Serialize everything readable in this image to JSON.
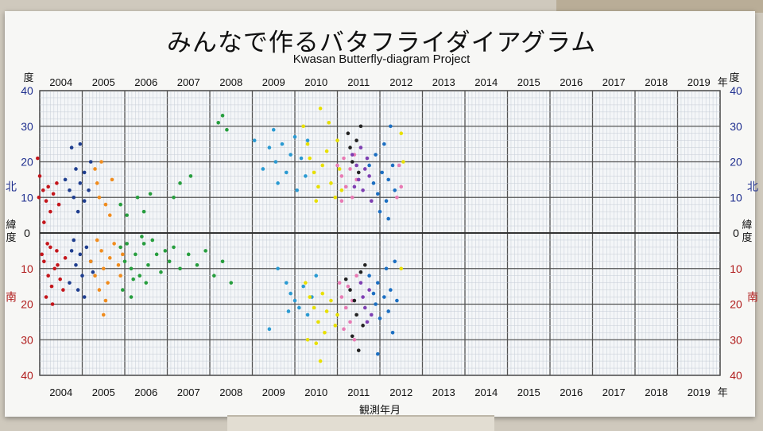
{
  "title": "みんなで作るバタフライダイアグラム",
  "subtitle": "Kwasan Butterfly-diagram Project",
  "chart_data": {
    "type": "scatter",
    "title": "みんなで作るバタフライダイアグラム",
    "subtitle": "Kwasan Butterfly-diagram Project",
    "xlabel": "観測年月",
    "ylabel_chars": [
      "緯",
      "度"
    ],
    "top_corner_label": "度",
    "year_suffix": "年",
    "north_label": "北",
    "south_label": "南",
    "xlim": [
      2004,
      2020
    ],
    "ylim": [
      -40,
      40
    ],
    "x_ticks": [
      "2004",
      "2005",
      "2006",
      "2007",
      "2008",
      "2009",
      "2010",
      "2011",
      "2012",
      "2013",
      "2014",
      "2015",
      "2016",
      "2017",
      "2018",
      "2019"
    ],
    "y_ticks": [
      {
        "v": 40,
        "t": "40",
        "c": "n"
      },
      {
        "v": 30,
        "t": "30",
        "c": "n"
      },
      {
        "v": 20,
        "t": "20",
        "c": "n"
      },
      {
        "v": 10,
        "t": "10",
        "c": "n"
      },
      {
        "v": 0,
        "t": "0",
        "c": "k"
      },
      {
        "v": -10,
        "t": "10",
        "c": "s"
      },
      {
        "v": -20,
        "t": "20",
        "c": "s"
      },
      {
        "v": -30,
        "t": "30",
        "c": "s"
      },
      {
        "v": -40,
        "t": "40",
        "c": "s"
      }
    ],
    "colors": {
      "north_label": "#1f2f8f",
      "south_label": "#b01c1c",
      "zero": "#333333"
    },
    "grid": true,
    "series": [
      {
        "color": "#c4161c",
        "points": [
          [
            2003.95,
            21
          ],
          [
            2004.0,
            16
          ],
          [
            2004.08,
            12
          ],
          [
            2004.15,
            9
          ],
          [
            2004.2,
            13
          ],
          [
            2004.25,
            6
          ],
          [
            2004.1,
            3
          ],
          [
            2004.32,
            11
          ],
          [
            2004.4,
            14
          ],
          [
            2004.45,
            8
          ],
          [
            2003.98,
            10
          ],
          [
            2004.18,
            -3
          ],
          [
            2004.1,
            -8
          ],
          [
            2004.2,
            -12
          ],
          [
            2004.28,
            -15
          ],
          [
            2004.05,
            -6
          ],
          [
            2004.35,
            -10
          ],
          [
            2004.4,
            -5
          ],
          [
            2004.48,
            -13
          ],
          [
            2004.15,
            -18
          ],
          [
            2004.3,
            -20
          ],
          [
            2004.42,
            -9
          ],
          [
            2004.55,
            -16
          ],
          [
            2004.6,
            -7
          ],
          [
            2004.25,
            -4
          ]
        ]
      },
      {
        "color": "#1f3e8f",
        "points": [
          [
            2004.75,
            24
          ],
          [
            2004.95,
            25
          ],
          [
            2004.6,
            15
          ],
          [
            2004.7,
            12
          ],
          [
            2004.8,
            10
          ],
          [
            2004.85,
            18
          ],
          [
            2004.95,
            14
          ],
          [
            2005.05,
            9
          ],
          [
            2005.15,
            12
          ],
          [
            2004.9,
            6
          ],
          [
            2005.05,
            17
          ],
          [
            2005.2,
            20
          ],
          [
            2004.75,
            -5
          ],
          [
            2004.85,
            -9
          ],
          [
            2004.95,
            -6
          ],
          [
            2005.0,
            -12
          ],
          [
            2005.1,
            -4
          ],
          [
            2005.2,
            -8
          ],
          [
            2004.7,
            -14
          ],
          [
            2004.9,
            -16
          ],
          [
            2004.8,
            -2
          ],
          [
            2005.05,
            -18
          ],
          [
            2005.25,
            -11
          ]
        ]
      },
      {
        "color": "#f08c1e",
        "points": [
          [
            2005.3,
            18
          ],
          [
            2005.45,
            20
          ],
          [
            2005.7,
            15
          ],
          [
            2005.4,
            10
          ],
          [
            2005.55,
            8
          ],
          [
            2005.65,
            5
          ],
          [
            2005.35,
            14
          ],
          [
            2005.2,
            -8
          ],
          [
            2005.3,
            -12
          ],
          [
            2005.45,
            -5
          ],
          [
            2005.5,
            -10
          ],
          [
            2005.6,
            -14
          ],
          [
            2005.65,
            -7
          ],
          [
            2005.75,
            -3
          ],
          [
            2005.85,
            -9
          ],
          [
            2005.9,
            -12
          ],
          [
            2005.55,
            -19
          ],
          [
            2005.5,
            -23
          ],
          [
            2005.4,
            -16
          ],
          [
            2005.95,
            -6
          ],
          [
            2005.35,
            -2
          ]
        ]
      },
      {
        "color": "#279e3e",
        "points": [
          [
            2005.9,
            8
          ],
          [
            2006.05,
            5
          ],
          [
            2006.3,
            10
          ],
          [
            2006.6,
            11
          ],
          [
            2006.45,
            6
          ],
          [
            2007.15,
            10
          ],
          [
            2007.3,
            14
          ],
          [
            2007.55,
            16
          ],
          [
            2008.2,
            31
          ],
          [
            2008.3,
            33
          ],
          [
            2008.4,
            29
          ],
          [
            2005.9,
            -4
          ],
          [
            2006.0,
            -8
          ],
          [
            2006.15,
            -10
          ],
          [
            2006.25,
            -6
          ],
          [
            2006.35,
            -12
          ],
          [
            2006.45,
            -3
          ],
          [
            2006.55,
            -9
          ],
          [
            2006.65,
            -2
          ],
          [
            2006.75,
            -6
          ],
          [
            2006.85,
            -11
          ],
          [
            2006.95,
            -5
          ],
          [
            2007.05,
            -8
          ],
          [
            2007.15,
            -4
          ],
          [
            2007.3,
            -10
          ],
          [
            2007.5,
            -6
          ],
          [
            2007.7,
            -9
          ],
          [
            2007.9,
            -5
          ],
          [
            2008.1,
            -12
          ],
          [
            2008.3,
            -8
          ],
          [
            2008.5,
            -14
          ],
          [
            2005.95,
            -16
          ],
          [
            2006.15,
            -18
          ],
          [
            2006.2,
            -13
          ],
          [
            2006.5,
            -14
          ],
          [
            2006.05,
            -3
          ],
          [
            2006.4,
            -1
          ]
        ]
      },
      {
        "color": "#2a9ad2",
        "points": [
          [
            2009.05,
            26
          ],
          [
            2009.25,
            18
          ],
          [
            2009.4,
            24
          ],
          [
            2009.5,
            29
          ],
          [
            2009.55,
            20
          ],
          [
            2009.6,
            14
          ],
          [
            2009.7,
            25
          ],
          [
            2009.8,
            17
          ],
          [
            2009.9,
            22
          ],
          [
            2010.0,
            27
          ],
          [
            2010.05,
            12
          ],
          [
            2010.15,
            21
          ],
          [
            2010.25,
            16
          ],
          [
            2010.3,
            26
          ],
          [
            2009.6,
            -10
          ],
          [
            2009.8,
            -14
          ],
          [
            2009.9,
            -17
          ],
          [
            2010.0,
            -19
          ],
          [
            2010.1,
            -21
          ],
          [
            2010.2,
            -15
          ],
          [
            2010.3,
            -23
          ],
          [
            2010.4,
            -18
          ],
          [
            2010.5,
            -12
          ],
          [
            2009.85,
            -22
          ],
          [
            2009.4,
            -27
          ]
        ]
      },
      {
        "color": "#e8e000",
        "points": [
          [
            2010.2,
            30
          ],
          [
            2010.3,
            25
          ],
          [
            2010.35,
            21
          ],
          [
            2010.45,
            17
          ],
          [
            2010.55,
            13
          ],
          [
            2010.65,
            19
          ],
          [
            2010.75,
            23
          ],
          [
            2010.85,
            14
          ],
          [
            2010.95,
            10
          ],
          [
            2011.0,
            26
          ],
          [
            2010.6,
            35
          ],
          [
            2010.8,
            31
          ],
          [
            2010.5,
            9
          ],
          [
            2011.05,
            18
          ],
          [
            2011.1,
            12
          ],
          [
            2012.5,
            28
          ],
          [
            2012.55,
            20
          ],
          [
            2010.25,
            -14
          ],
          [
            2010.35,
            -18
          ],
          [
            2010.45,
            -21
          ],
          [
            2010.55,
            -25
          ],
          [
            2010.65,
            -17
          ],
          [
            2010.75,
            -22
          ],
          [
            2010.85,
            -19
          ],
          [
            2010.95,
            -26
          ],
          [
            2010.7,
            -28
          ],
          [
            2010.5,
            -31
          ],
          [
            2010.3,
            -30
          ],
          [
            2011.0,
            -23
          ],
          [
            2012.5,
            -10
          ],
          [
            2010.6,
            -36
          ]
        ]
      },
      {
        "color": "#e87ab4",
        "points": [
          [
            2011.0,
            19
          ],
          [
            2011.1,
            16
          ],
          [
            2011.15,
            21
          ],
          [
            2011.2,
            13
          ],
          [
            2011.3,
            18
          ],
          [
            2011.35,
            10
          ],
          [
            2011.4,
            22
          ],
          [
            2011.45,
            15
          ],
          [
            2011.1,
            9
          ],
          [
            2012.45,
            19
          ],
          [
            2012.5,
            13
          ],
          [
            2012.4,
            10
          ],
          [
            2011.05,
            -14
          ],
          [
            2011.1,
            -18
          ],
          [
            2011.2,
            -21
          ],
          [
            2011.25,
            -15
          ],
          [
            2011.3,
            -25
          ],
          [
            2011.35,
            -19
          ],
          [
            2011.45,
            -12
          ],
          [
            2011.15,
            -27
          ],
          [
            2011.4,
            -30
          ]
        ]
      },
      {
        "color": "#222222",
        "points": [
          [
            2011.25,
            28
          ],
          [
            2011.3,
            24
          ],
          [
            2011.35,
            20
          ],
          [
            2011.45,
            26
          ],
          [
            2011.5,
            17
          ],
          [
            2011.55,
            30
          ],
          [
            2011.2,
            -13
          ],
          [
            2011.3,
            -16
          ],
          [
            2011.4,
            -19
          ],
          [
            2011.45,
            -23
          ],
          [
            2011.55,
            -11
          ],
          [
            2011.6,
            -26
          ],
          [
            2011.35,
            -29
          ],
          [
            2011.5,
            -33
          ],
          [
            2011.65,
            -9
          ]
        ]
      },
      {
        "color": "#7e3fb2",
        "points": [
          [
            2011.35,
            22
          ],
          [
            2011.45,
            19
          ],
          [
            2011.5,
            15
          ],
          [
            2011.55,
            24
          ],
          [
            2011.6,
            12
          ],
          [
            2011.65,
            18
          ],
          [
            2011.7,
            21
          ],
          [
            2011.75,
            16
          ],
          [
            2011.8,
            9
          ],
          [
            2011.4,
            13
          ],
          [
            2011.55,
            -14
          ],
          [
            2011.6,
            -18
          ],
          [
            2011.65,
            -21
          ],
          [
            2011.7,
            -25
          ],
          [
            2011.75,
            -16
          ],
          [
            2011.8,
            -23
          ]
        ]
      },
      {
        "color": "#1c6fc2",
        "points": [
          [
            2011.75,
            19
          ],
          [
            2011.85,
            14
          ],
          [
            2011.9,
            22
          ],
          [
            2011.95,
            11
          ],
          [
            2012.05,
            17
          ],
          [
            2012.1,
            25
          ],
          [
            2012.15,
            9
          ],
          [
            2012.2,
            15
          ],
          [
            2012.25,
            30
          ],
          [
            2012.3,
            19
          ],
          [
            2012.35,
            12
          ],
          [
            2012.0,
            6
          ],
          [
            2012.2,
            4
          ],
          [
            2011.75,
            -12
          ],
          [
            2011.85,
            -17
          ],
          [
            2011.9,
            -20
          ],
          [
            2011.95,
            -14
          ],
          [
            2012.0,
            -24
          ],
          [
            2012.1,
            -18
          ],
          [
            2012.15,
            -10
          ],
          [
            2012.2,
            -22
          ],
          [
            2012.25,
            -16
          ],
          [
            2012.3,
            -28
          ],
          [
            2012.35,
            -8
          ],
          [
            2012.4,
            -19
          ],
          [
            2011.95,
            -34
          ]
        ]
      }
    ]
  }
}
